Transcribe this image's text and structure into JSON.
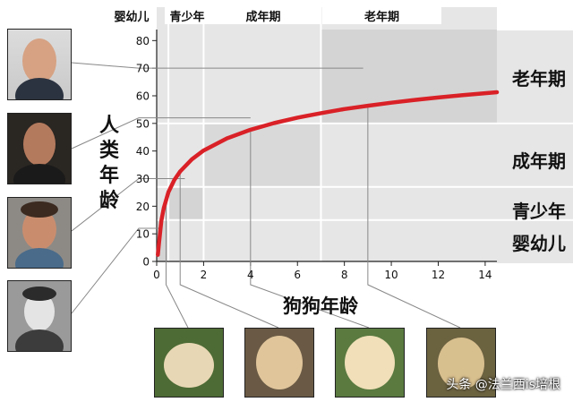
{
  "chart_data": {
    "type": "line",
    "xlabel": "狗狗年龄",
    "ylabel": "人类年龄",
    "x_ticks": [
      0,
      2,
      4,
      6,
      8,
      10,
      12,
      14
    ],
    "y_ticks": [
      0,
      10,
      20,
      30,
      40,
      50,
      60,
      70,
      80
    ],
    "xlim": [
      0,
      14.5
    ],
    "ylim": [
      0,
      84
    ],
    "grid": true,
    "series": [
      {
        "name": "",
        "color": "#d92127",
        "x": [
          0.05,
          0.1,
          0.2,
          0.3,
          0.5,
          0.75,
          1,
          1.5,
          2,
          3,
          4,
          5,
          6,
          7,
          8,
          9,
          10,
          11,
          12,
          13,
          14.5
        ],
        "y": [
          2.4,
          6.7,
          14.7,
          19.3,
          25.1,
          29.5,
          32.6,
          37.0,
          40.2,
          44.6,
          47.7,
          50.1,
          52.1,
          53.7,
          55.2,
          56.4,
          57.5,
          58.5,
          59.4,
          60.2,
          61.3
        ]
      }
    ],
    "stage_bands": [
      {
        "label": "婴幼儿",
        "x": [
          0,
          0.5
        ],
        "y": [
          0,
          15
        ]
      },
      {
        "label": "青少年",
        "x": [
          0.5,
          2
        ],
        "y": [
          15,
          27
        ]
      },
      {
        "label": "成年期",
        "x": [
          2,
          7
        ],
        "y": [
          27,
          50
        ]
      },
      {
        "label": "老年期",
        "x": [
          7,
          14.5
        ],
        "y": [
          50,
          84
        ]
      }
    ],
    "top_stage_labels": [
      "婴幼儿",
      "青少年",
      "成年期",
      "老年期"
    ],
    "right_stage_labels": [
      "老年期",
      "成年期",
      "青少年",
      "婴幼儿"
    ],
    "human_photo_ages": [
      70,
      52,
      30,
      12
    ],
    "dog_photo_ages": [
      0.4,
      1,
      4,
      9
    ]
  },
  "watermark": "头条 @法兰西is培根"
}
